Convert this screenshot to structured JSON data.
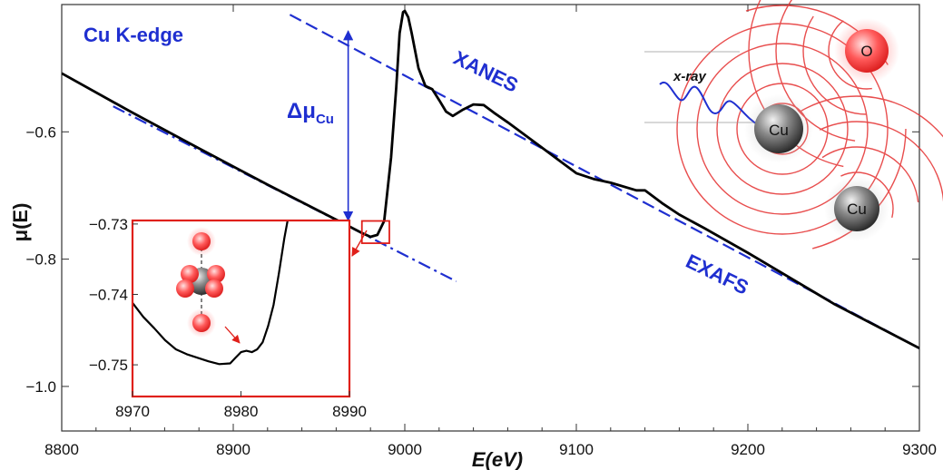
{
  "chart_data": [
    {
      "type": "line",
      "title": "",
      "xlabel": "E(eV)",
      "ylabel": "μ(E)",
      "xlim": [
        8800,
        9300
      ],
      "ylim": [
        -1.07,
        -0.4
      ],
      "x_ticks": [
        8800,
        8900,
        9000,
        9100,
        9200,
        9300
      ],
      "y_ticks": [
        -0.6,
        -0.8,
        -1.0
      ],
      "x_tick_labels": [
        "8800",
        "8900",
        "9000",
        "9100",
        "9200",
        "9300"
      ],
      "y_tick_labels": [
        "−0.6",
        "−0.8",
        "−1.0"
      ],
      "grid": false,
      "series": [
        {
          "role": "measured spectrum",
          "color": "#000000",
          "style": "solid",
          "x": [
            8800,
            8840,
            8880,
            8920,
            8960,
            8975,
            8980,
            8984,
            8988,
            8992,
            8995,
            8997,
            8999,
            9000,
            9002,
            9004,
            9008,
            9012,
            9016,
            9020,
            9024,
            9028,
            9034,
            9040,
            9046,
            9052,
            9060,
            9070,
            9080,
            9090,
            9100,
            9110,
            9120,
            9135,
            9140,
            9150,
            9160,
            9175,
            9200,
            9250,
            9300
          ],
          "y": [
            -0.508,
            -0.568,
            -0.626,
            -0.683,
            -0.738,
            -0.759,
            -0.765,
            -0.762,
            -0.74,
            -0.64,
            -0.53,
            -0.445,
            -0.412,
            -0.41,
            -0.42,
            -0.445,
            -0.5,
            -0.528,
            -0.533,
            -0.55,
            -0.568,
            -0.575,
            -0.565,
            -0.557,
            -0.558,
            -0.57,
            -0.585,
            -0.605,
            -0.625,
            -0.645,
            -0.665,
            -0.674,
            -0.68,
            -0.692,
            -0.692,
            -0.712,
            -0.73,
            -0.752,
            -0.79,
            -0.87,
            -0.94
          ]
        },
        {
          "role": "pre-edge fit",
          "color": "#1f2fd0",
          "style": "dash-dot",
          "x": [
            8830,
            9030
          ],
          "y": [
            -0.56,
            -0.835
          ]
        },
        {
          "role": "post-edge fit",
          "color": "#1f2fd0",
          "style": "dashed",
          "x": [
            8933,
            9300
          ],
          "y": [
            -0.416,
            -0.94
          ]
        }
      ],
      "annotations": [
        {
          "text": "Cu K-edge",
          "role": "edge-label"
        },
        {
          "text": "XANES",
          "role": "region-label"
        },
        {
          "text": "EXAFS",
          "role": "region-label"
        },
        {
          "text": "Δμ",
          "subscript": "Cu",
          "role": "edge-step",
          "x": 8967,
          "y_from": -0.436,
          "y_to": -0.745
        },
        {
          "text": "x-ray",
          "role": "scattering-schematic"
        }
      ],
      "atoms": [
        {
          "label": "Cu",
          "color": "#808080"
        },
        {
          "label": "O",
          "color": "#ff4d4d"
        },
        {
          "label": "Cu",
          "color": "#808080"
        }
      ],
      "highlight_box": {
        "xlim": [
          8975,
          8991
        ],
        "ylim": [
          -0.775,
          -0.74
        ],
        "color": "#e0201a"
      }
    },
    {
      "type": "line",
      "title": "",
      "role": "inset",
      "xlim": [
        8970,
        8990
      ],
      "ylim": [
        -0.7545,
        -0.7295
      ],
      "x_ticks": [
        8970,
        8980,
        8990
      ],
      "y_ticks": [
        -0.73,
        -0.74,
        -0.75
      ],
      "x_tick_labels": [
        "8970",
        "8980",
        "8990"
      ],
      "y_tick_labels": [
        "−0.73",
        "−0.74",
        "−0.75"
      ],
      "frame_color": "#e0201a",
      "series": [
        {
          "color": "#000000",
          "x": [
            8970,
            8971,
            8972,
            8973,
            8974,
            8975,
            8976,
            8977,
            8978,
            8979,
            8979.5,
            8980,
            8980.5,
            8981,
            8981.5,
            8982,
            8982.5,
            8983,
            8983.5,
            8984,
            8984.3
          ],
          "y": [
            -0.7412,
            -0.7432,
            -0.7448,
            -0.7465,
            -0.7478,
            -0.7485,
            -0.749,
            -0.7495,
            -0.7499,
            -0.7498,
            -0.749,
            -0.7482,
            -0.748,
            -0.7482,
            -0.7478,
            -0.7468,
            -0.7445,
            -0.7415,
            -0.737,
            -0.732,
            -0.7295
          ]
        }
      ],
      "atoms": [
        {
          "color": "#ff6b6b"
        },
        {
          "color": "#ff6b6b"
        },
        {
          "color": "#ff6b6b"
        },
        {
          "color": "#ff6b6b"
        },
        {
          "color": "#ff6b6b"
        },
        {
          "color": "#808080"
        }
      ]
    }
  ]
}
